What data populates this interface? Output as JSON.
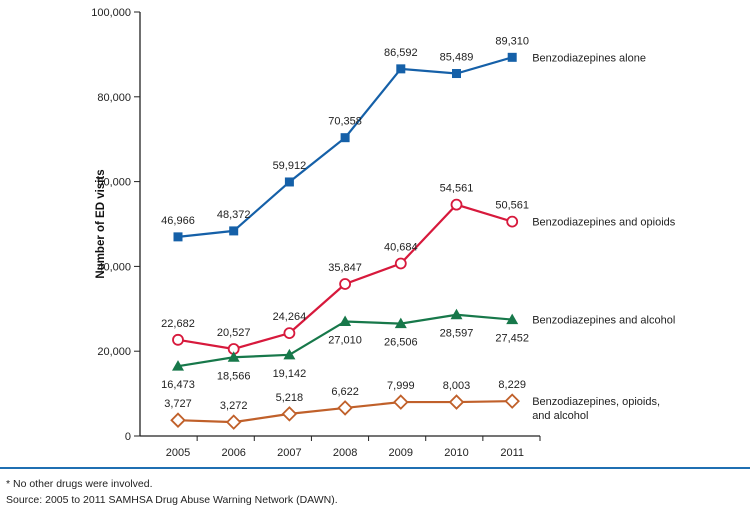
{
  "chart_data": {
    "type": "line",
    "ylabel": "Number of ED visits",
    "xlabel": "",
    "ylim": [
      0,
      100000
    ],
    "yticks": [
      0,
      20000,
      40000,
      60000,
      80000,
      100000
    ],
    "ytick_labels": [
      "0",
      "20,000",
      "40,000",
      "60,000",
      "80,000",
      "100,000"
    ],
    "categories": [
      "2005",
      "2006",
      "2007",
      "2008",
      "2009",
      "2010",
      "2011"
    ],
    "grid": false,
    "legend": "inline labels at line ends",
    "series": [
      {
        "name": "Benzodiazepines alone",
        "marker": "filled-square",
        "color": "#1560a8",
        "label_pos": "above",
        "values": [
          46966,
          48372,
          59912,
          70358,
          86592,
          85489,
          89310
        ],
        "labels": [
          "46,966",
          "48,372",
          "59,912",
          "70,358",
          "86,592",
          "85,489",
          "89,310"
        ]
      },
      {
        "name": "Benzodiazepines and opioids",
        "marker": "open-circle",
        "color": "#d7193c",
        "label_pos": "above",
        "values": [
          22682,
          20527,
          24264,
          35847,
          40684,
          54561,
          50561
        ],
        "labels": [
          "22,682",
          "20,527",
          "24,264",
          "35,847",
          "40,684",
          "54,561",
          "50,561"
        ]
      },
      {
        "name": "Benzodiazepines and alcohol",
        "marker": "filled-triangle",
        "color": "#17784a",
        "label_pos": "below",
        "values": [
          16473,
          18566,
          19142,
          27010,
          26506,
          28597,
          27452
        ],
        "labels": [
          "16,473",
          "18,566",
          "19,142",
          "27,010",
          "26,506",
          "28,597",
          "27,452"
        ]
      },
      {
        "name": "Benzodiazepines, opioids, and alcohol",
        "name_lines": [
          "Benzodiazepines, opioids,",
          "and alcohol"
        ],
        "marker": "open-diamond",
        "color": "#c0602a",
        "label_pos": "above",
        "values": [
          3727,
          3272,
          5218,
          6622,
          7999,
          8003,
          8229
        ],
        "labels": [
          "3,727",
          "3,272",
          "5,218",
          "6,622",
          "7,999",
          "8,003",
          "8,229"
        ]
      }
    ]
  },
  "footnote": "* No other drugs were involved.",
  "source": "Source: 2005 to 2011 SAMHSA Drug Abuse Warning Network (DAWN)."
}
